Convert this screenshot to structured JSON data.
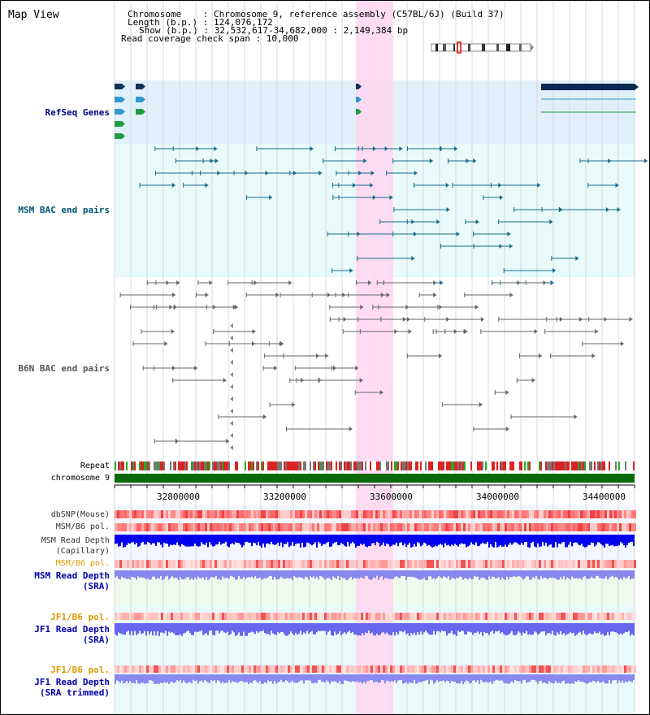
{
  "header": {
    "title": "Map View",
    "info_lines": [
      "Chromosome    : Chromosome 9, reference assembly (C57BL/6J) (Build 37)",
      "Length (b.p.) : 124,076,172",
      "Show (b.p.) : 32,532,617-34,682,000 : 2,149,384 bp",
      "Read coverage check span : 10,000"
    ]
  },
  "tracks": {
    "refseq": "RefSeq Genes",
    "msm_bac": "MSM BAC end pairs",
    "b6n_bac": "B6N BAC end pairs",
    "repeat": "Repeat",
    "chromosome": "chromosome 9",
    "dbsnp": "dbSNP(Mouse)",
    "msm_pol": "MSM/B6 pol.",
    "msm_depth_cap_1": "MSM Read Depth",
    "msm_depth_cap_2": "(Capillary)",
    "msm_pol_sra": "MSM/B6 pol.",
    "msm_depth_sra_1": "MSM Read Depth",
    "msm_depth_sra_2": "(SRA)",
    "jf1_pol_1": "JF1/B6 pol.",
    "jf1_depth_1": "JF1 Read Depth",
    "jf1_depth_1b": "(SRA)",
    "jf1_pol_2": "JF1/B6 pol.",
    "jf1_depth_2": "JF1 Read Depth",
    "jf1_depth_2b": "(SRA trimmed)"
  },
  "axis": {
    "ticks": [
      "32800000",
      "33200000",
      "33600000",
      "34000000",
      "34400000"
    ]
  },
  "colors": {
    "refseq_label": "#000080",
    "msm_label": "#005577",
    "b6n_label": "#555555",
    "orange_label": "#dd9900",
    "blue_label": "#0000aa",
    "highlight": "#ffd6f0",
    "refseq_bg": "#dff0fb",
    "msm_bg": "#e8fafa"
  }
}
